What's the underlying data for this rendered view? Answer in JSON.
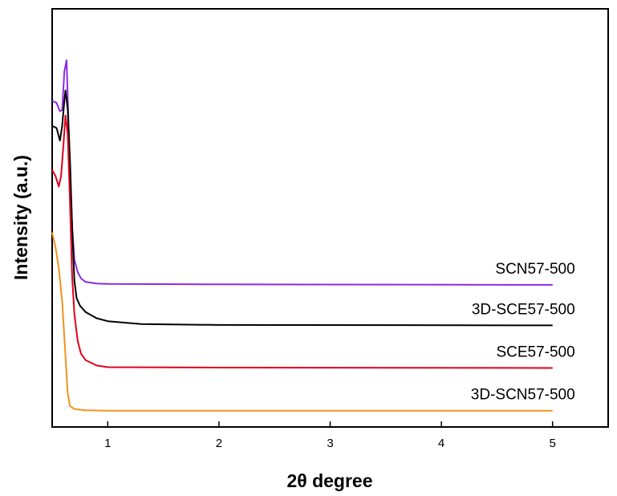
{
  "chart_data": {
    "type": "line",
    "xlabel": "2θ degree",
    "ylabel": "Intensity (a.u.)",
    "xlim": [
      0.5,
      5.5
    ],
    "ylim": [
      0,
      100
    ],
    "x_ticks": [
      1,
      2,
      3,
      4,
      5
    ],
    "y_ticks_labeled": false,
    "grid": false,
    "legend": "labels placed above each curve at right",
    "series": [
      {
        "name": "SCN57-500",
        "color": "#8a2be2",
        "points": [
          [
            0.5,
            78
          ],
          [
            0.54,
            77.5
          ],
          [
            0.57,
            75.5
          ],
          [
            0.59,
            75.8
          ],
          [
            0.61,
            85
          ],
          [
            0.63,
            87.7
          ],
          [
            0.65,
            70
          ],
          [
            0.68,
            48
          ],
          [
            0.7,
            40
          ],
          [
            0.73,
            37
          ],
          [
            0.76,
            35.5
          ],
          [
            0.8,
            34.7
          ],
          [
            0.9,
            34.3
          ],
          [
            1.0,
            34.2
          ],
          [
            2.0,
            34.1
          ],
          [
            5.0,
            34.0
          ]
        ]
      },
      {
        "name": "3D-SCE57-500",
        "color": "#000000",
        "points": [
          [
            0.5,
            72
          ],
          [
            0.54,
            71.5
          ],
          [
            0.57,
            68.5
          ],
          [
            0.59,
            72
          ],
          [
            0.61,
            78
          ],
          [
            0.62,
            80.5
          ],
          [
            0.64,
            76
          ],
          [
            0.66,
            64
          ],
          [
            0.68,
            48
          ],
          [
            0.7,
            35
          ],
          [
            0.72,
            30.8
          ],
          [
            0.75,
            29
          ],
          [
            0.8,
            27.5
          ],
          [
            0.9,
            26
          ],
          [
            1.0,
            25.3
          ],
          [
            1.3,
            24.6
          ],
          [
            2.0,
            24.4
          ],
          [
            5.0,
            24.3
          ]
        ]
      },
      {
        "name": "SCE57-500",
        "color": "#e0001b",
        "points": [
          [
            0.5,
            61.5
          ],
          [
            0.53,
            60
          ],
          [
            0.56,
            57.5
          ],
          [
            0.58,
            60
          ],
          [
            0.6,
            67
          ],
          [
            0.62,
            74.5
          ],
          [
            0.64,
            70
          ],
          [
            0.66,
            54
          ],
          [
            0.68,
            36
          ],
          [
            0.7,
            27
          ],
          [
            0.73,
            20.5
          ],
          [
            0.76,
            17.5
          ],
          [
            0.8,
            16
          ],
          [
            0.9,
            14.7
          ],
          [
            1.0,
            14.3
          ],
          [
            2.0,
            14.2
          ],
          [
            5.0,
            14.1
          ]
        ]
      },
      {
        "name": "3D-SCN57-500",
        "color": "#f0931e",
        "points": [
          [
            0.5,
            46.5
          ],
          [
            0.53,
            43
          ],
          [
            0.56,
            38
          ],
          [
            0.59,
            30
          ],
          [
            0.62,
            17
          ],
          [
            0.64,
            8
          ],
          [
            0.66,
            5
          ],
          [
            0.7,
            4.3
          ],
          [
            0.8,
            4
          ],
          [
            1.0,
            3.9
          ],
          [
            2.0,
            3.9
          ],
          [
            5.0,
            3.9
          ]
        ]
      }
    ]
  }
}
